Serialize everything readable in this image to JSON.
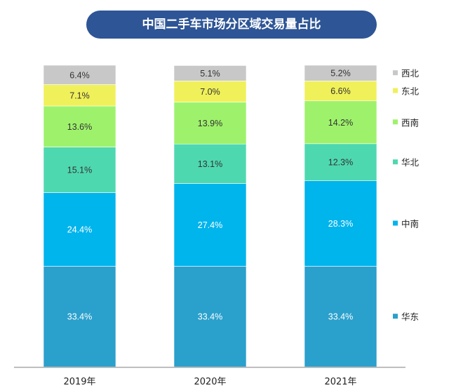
{
  "chart_data": {
    "type": "bar",
    "stacked": true,
    "title": "中国二手车市场分区域交易量占比",
    "categories": [
      "2019年",
      "2020年",
      "2021年"
    ],
    "series": [
      {
        "name": "华东",
        "color": "#2aa0cc",
        "label_color": "#ffffff",
        "values": [
          33.4,
          33.4,
          33.4
        ]
      },
      {
        "name": "中南",
        "color": "#00b4ec",
        "label_color": "#ffffff",
        "values": [
          24.4,
          27.4,
          28.3
        ]
      },
      {
        "name": "华北",
        "color": "#4ed8b0",
        "label_color": "#333333",
        "values": [
          15.1,
          13.1,
          12.3
        ]
      },
      {
        "name": "西南",
        "color": "#9ef26b",
        "label_color": "#333333",
        "values": [
          13.6,
          13.9,
          14.2
        ]
      },
      {
        "name": "东北",
        "color": "#f0f05a",
        "label_color": "#333333",
        "values": [
          7.1,
          7.0,
          6.6
        ]
      },
      {
        "name": "西北",
        "color": "#c8c8c8",
        "label_color": "#333333",
        "values": [
          6.4,
          5.1,
          5.2
        ]
      }
    ],
    "ylim": [
      0,
      100
    ],
    "value_format": "percent, one decimal",
    "legend": "right",
    "grid": false
  }
}
